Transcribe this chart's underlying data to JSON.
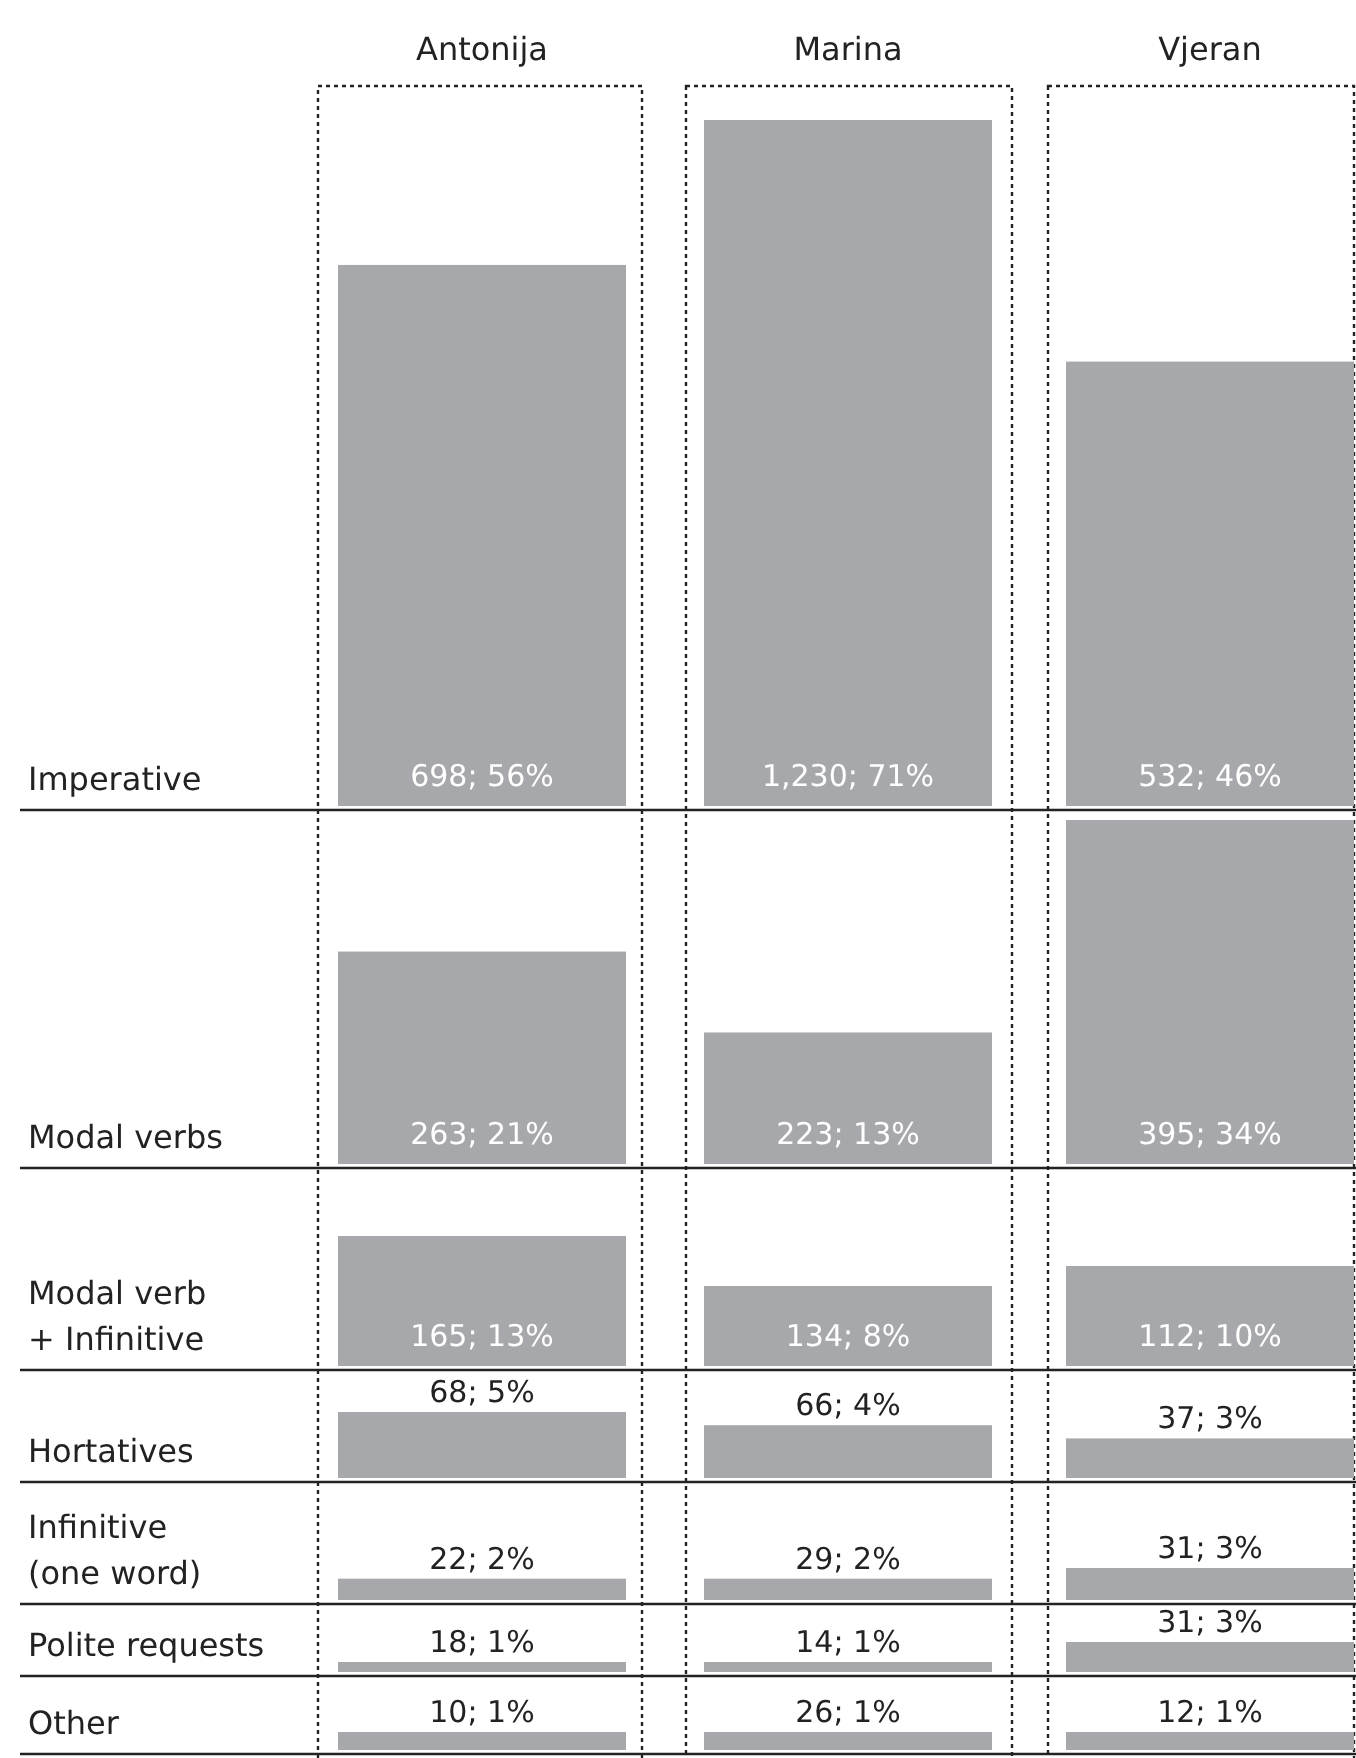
{
  "chart_data": [
    {
      "type": "bar",
      "ylabel": "Imperative",
      "categories": [
        "Antonija",
        "Marina",
        "Vjeran"
      ],
      "values": [
        56,
        71,
        46
      ],
      "value_labels": [
        "698; 56%",
        "1,230; 71%",
        "532; 46%"
      ],
      "color": "#a7a8ab",
      "tick_labels": "x"
    },
    {
      "type": "bar",
      "ylabel": "Modal verbs",
      "categories": [
        "Antonija",
        "Marina",
        "Vjeran"
      ],
      "values": [
        21,
        13,
        34
      ],
      "value_labels": [
        "263; 21%",
        "223; 13%",
        "395; 34%"
      ],
      "color": "#a7a8ab",
      "tick_labels": false
    },
    {
      "type": "bar",
      "ylabel": "Modal verb + Infinitive",
      "categories": [
        "Antonija",
        "Marina",
        "Vjeran"
      ],
      "values": [
        13,
        8,
        10
      ],
      "value_labels": [
        "165; 13%",
        "134; 8%",
        "112; 10%"
      ],
      "color": "#a7a8ab",
      "tick_labels": false
    },
    {
      "type": "bar",
      "ylabel": "Hortatives",
      "categories": [
        "Antonija",
        "Marina",
        "Vjeran"
      ],
      "values": [
        5,
        4,
        3
      ],
      "value_labels": [
        "68; 5%",
        "66; 4%",
        "37; 3%"
      ],
      "color": "#a7a8ab",
      "tick_labels": false
    },
    {
      "type": "bar",
      "ylabel": "Infinitive (one word)",
      "categories": [
        "Antonija",
        "Marina",
        "Vjeran"
      ],
      "values": [
        2,
        2,
        3
      ],
      "value_labels": [
        "22; 2%",
        "29; 2%",
        "31; 3%"
      ],
      "color": "#a7a8ab",
      "tick_labels": false
    },
    {
      "type": "bar",
      "ylabel": "Polite requests",
      "categories": [
        "Antonija",
        "Marina",
        "Vjeran"
      ],
      "values": [
        1,
        1,
        3
      ],
      "value_labels": [
        "18; 1%",
        "14; 1%",
        "31; 3%"
      ],
      "color": "#a7a8ab",
      "tick_labels": false
    },
    {
      "type": "bar",
      "ylabel": "Other",
      "categories": [
        "Antonija",
        "Marina",
        "Vjeran"
      ],
      "values": [
        1,
        1,
        1
      ],
      "value_labels": [
        "10; 1%",
        "26; 1%",
        "12; 1%"
      ],
      "color": "#a7a8ab",
      "tick_labels": false
    }
  ]
}
